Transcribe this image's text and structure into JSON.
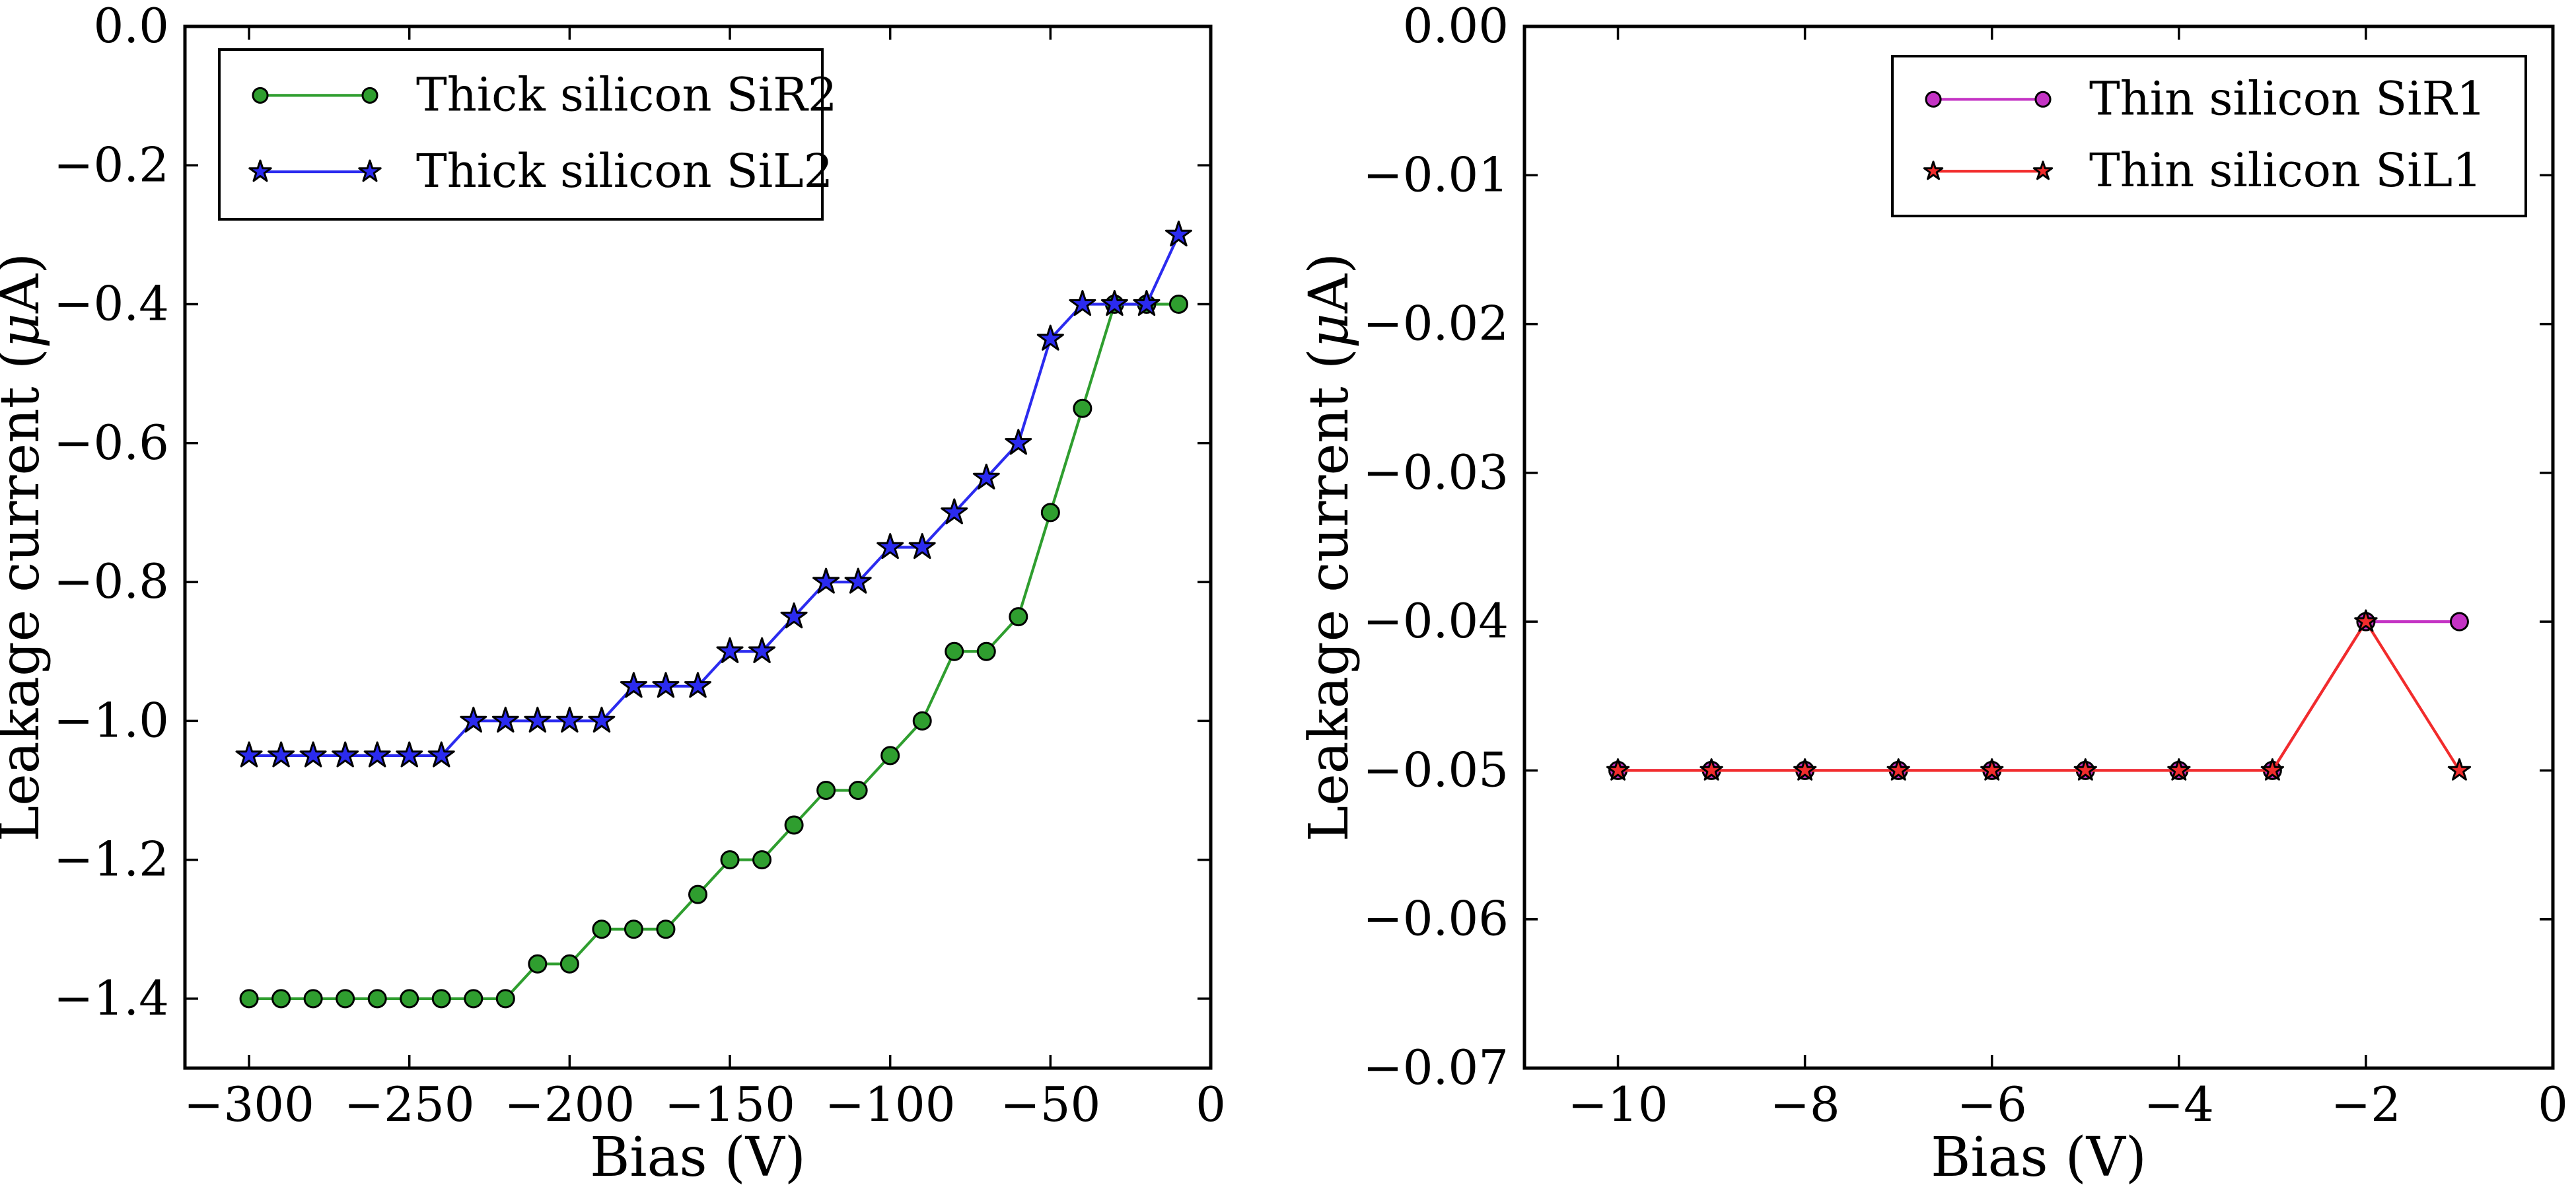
{
  "figure": {
    "background": "#ffffff",
    "marker_edge_color": "#000000"
  },
  "chart_data": [
    {
      "id": "thick-silicon",
      "type": "line",
      "title": "",
      "xlabel": "Bias (V)",
      "ylabel": {
        "pre": "Leakage current (",
        "mu": "μ",
        "post": "A)"
      },
      "xlim": [
        -320,
        0
      ],
      "ylim": [
        -1.5,
        0.0
      ],
      "xticks": [
        -300,
        -250,
        -200,
        -150,
        -100,
        -50,
        0
      ],
      "xtick_labels": [
        "−300",
        "−250",
        "−200",
        "−150",
        "−100",
        "−50",
        "0"
      ],
      "yticks": [
        0.0,
        -0.2,
        -0.4,
        -0.6,
        -0.8,
        -1.0,
        -1.2,
        -1.4
      ],
      "ytick_labels": [
        "0.0",
        "−0.2",
        "−0.4",
        "−0.6",
        "−0.8",
        "−1.0",
        "−1.2",
        "−1.4"
      ],
      "grid": false,
      "legend_loc": "upper-left",
      "x": [
        -300,
        -290,
        -280,
        -270,
        -260,
        -250,
        -240,
        -230,
        -220,
        -210,
        -200,
        -190,
        -180,
        -170,
        -160,
        -150,
        -140,
        -130,
        -120,
        -110,
        -100,
        -90,
        -80,
        -70,
        -60,
        -50,
        -40,
        -30,
        -20,
        -10
      ],
      "series": [
        {
          "name": "Thick silicon SiR2",
          "marker": "circle",
          "color": "#2f9e2f",
          "values": [
            -1.4,
            -1.4,
            -1.4,
            -1.4,
            -1.4,
            -1.4,
            -1.4,
            -1.4,
            -1.4,
            -1.35,
            -1.35,
            -1.3,
            -1.3,
            -1.3,
            -1.25,
            -1.2,
            -1.2,
            -1.15,
            -1.1,
            -1.1,
            -1.05,
            -1.0,
            -0.9,
            -0.9,
            -0.85,
            -0.7,
            -0.55,
            -0.4,
            -0.4,
            -0.4
          ]
        },
        {
          "name": "Thick silicon SiL2",
          "marker": "star",
          "color": "#2b2bef",
          "values": [
            -1.05,
            -1.05,
            -1.05,
            -1.05,
            -1.05,
            -1.05,
            -1.05,
            -1.0,
            -1.0,
            -1.0,
            -1.0,
            -1.0,
            -0.95,
            -0.95,
            -0.95,
            -0.9,
            -0.9,
            -0.85,
            -0.8,
            -0.8,
            -0.75,
            -0.75,
            -0.7,
            -0.65,
            -0.6,
            -0.45,
            -0.4,
            -0.4,
            -0.4,
            -0.3
          ]
        }
      ]
    },
    {
      "id": "thin-silicon",
      "type": "line",
      "title": "",
      "xlabel": "Bias (V)",
      "ylabel": {
        "pre": "Leakage current (",
        "mu": "μ",
        "post": "A)"
      },
      "xlim": [
        -11,
        0
      ],
      "ylim": [
        -0.07,
        0.0
      ],
      "xticks": [
        -10,
        -8,
        -6,
        -4,
        -2,
        0
      ],
      "xtick_labels": [
        "−10",
        "−8",
        "−6",
        "−4",
        "−2",
        "0"
      ],
      "yticks": [
        0.0,
        -0.01,
        -0.02,
        -0.03,
        -0.04,
        -0.05,
        -0.06,
        -0.07
      ],
      "ytick_labels": [
        "0.00",
        "−0.01",
        "−0.02",
        "−0.03",
        "−0.04",
        "−0.05",
        "−0.06",
        "−0.07"
      ],
      "grid": false,
      "legend_loc": "upper-right",
      "x": [
        -10,
        -9,
        -8,
        -7,
        -6,
        -5,
        -4,
        -3,
        -2,
        -1
      ],
      "series": [
        {
          "name": "Thin silicon SiR1",
          "marker": "circle",
          "color": "#c433c4",
          "values": [
            -0.05,
            -0.05,
            -0.05,
            -0.05,
            -0.05,
            -0.05,
            -0.05,
            -0.05,
            -0.04,
            -0.04
          ]
        },
        {
          "name": "Thin silicon SiL1",
          "marker": "star",
          "color": "#f22c2c",
          "values": [
            -0.05,
            -0.05,
            -0.05,
            -0.05,
            -0.05,
            -0.05,
            -0.05,
            -0.05,
            -0.04,
            -0.05
          ]
        }
      ]
    }
  ]
}
